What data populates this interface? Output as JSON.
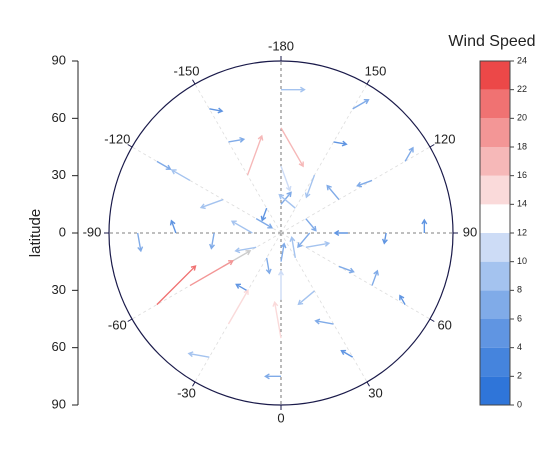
{
  "chart_data": {
    "type": "polar-vector",
    "y_label": "latitude",
    "ylim": [
      -90,
      90
    ],
    "yticks": [
      {
        "value": -90,
        "label": "90"
      },
      {
        "value": -60,
        "label": "60"
      },
      {
        "value": -30,
        "label": "30"
      },
      0,
      30,
      60,
      90
    ],
    "theta_ticks": [
      -180,
      -150,
      -120,
      -90,
      -60,
      -30,
      0,
      30,
      60,
      90,
      120,
      150
    ],
    "colorbar": {
      "title": "Wind Speed",
      "zlim": [
        0,
        24
      ],
      "ticks": [
        0,
        2,
        4,
        6,
        8,
        10,
        12,
        14,
        16,
        18,
        20,
        22,
        24
      ],
      "colors": [
        "#2f75d9",
        "#4584dd",
        "#6095e2",
        "#80abe8",
        "#a4c3ef",
        "#cddcf6",
        "#ffffff",
        "#fadada",
        "#f6b8b8",
        "#f39696",
        "#f07272",
        "#ec4848"
      ]
    },
    "vectors": {
      "theta": [
        -180,
        -150,
        -120,
        -90,
        -60,
        -30,
        0,
        30,
        60,
        90,
        120,
        150,
        -180,
        -150,
        -120,
        -90,
        -60,
        -30,
        0,
        30,
        60,
        90,
        120,
        150,
        -180,
        -150,
        -120,
        -90,
        -60,
        -30,
        0,
        30,
        60,
        90,
        120,
        150,
        -180,
        -150,
        -120,
        -90,
        -60,
        -30,
        0,
        30,
        60,
        90,
        120,
        150
      ],
      "r": [
        15,
        15,
        15,
        15,
        15,
        15,
        15,
        15,
        15,
        15,
        15,
        15,
        35,
        35,
        35,
        35,
        35,
        35,
        35,
        35,
        35,
        35,
        35,
        35,
        55,
        55,
        55,
        55,
        55,
        55,
        55,
        55,
        55,
        55,
        55,
        55,
        75,
        75,
        75,
        75,
        75,
        75,
        75,
        75,
        75,
        75,
        75,
        75
      ],
      "speed": [
        6,
        5,
        7,
        9,
        8,
        6,
        7,
        8,
        9,
        7,
        6,
        8,
        10,
        16,
        9,
        6,
        12,
        5,
        11,
        8,
        6,
        5,
        7,
        9,
        17,
        6,
        8,
        5,
        19,
        15,
        14,
        7,
        6,
        4,
        6,
        5,
        9,
        5,
        6,
        7,
        21,
        8,
        6,
        5,
        4,
        5,
        6,
        7
      ],
      "direction": [
        40,
        200,
        120,
        300,
        260,
        170,
        10,
        350,
        80,
        220,
        140,
        310,
        160,
        20,
        250,
        190,
        60,
        300,
        0,
        230,
        110,
        270,
        320,
        200,
        150,
        80,
        300,
        340,
        60,
        30,
        350,
        280,
        20,
        190,
        250,
        100,
        90,
        100,
        120,
        170,
        45,
        280,
        270,
        300,
        330,
        0,
        30,
        60
      ]
    }
  }
}
